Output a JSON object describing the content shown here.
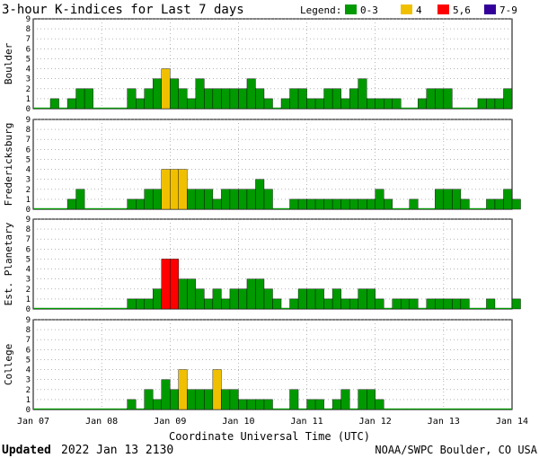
{
  "header": {
    "title": "3-hour K-indices for Last 7 days",
    "legend_label": "Legend:",
    "legend": [
      {
        "label": "0-3",
        "color": "#009900"
      },
      {
        "label": "4",
        "color": "#f0c000"
      },
      {
        "label": "5,6",
        "color": "#ff0000"
      },
      {
        "label": "7-9",
        "color": "#330099"
      }
    ]
  },
  "footer": {
    "updated_label": "Updated",
    "updated_value": "2022 Jan 13 2130",
    "source": "NOAA/SWPC Boulder, CO USA"
  },
  "chart_data": {
    "type": "bar",
    "xlabel": "Coordinate Universal Time (UTC)",
    "x_ticks": [
      "Jan 07",
      "Jan 08",
      "Jan 09",
      "Jan 10",
      "Jan 11",
      "Jan 12",
      "Jan 13",
      "Jan 14"
    ],
    "y_ticks": [
      "0",
      "1",
      "2",
      "3",
      "4",
      "5",
      "6",
      "7",
      "8",
      "9"
    ],
    "ylim": [
      0,
      9
    ],
    "grid": true,
    "panels": [
      {
        "name": "Boulder",
        "values": [
          0,
          0,
          1,
          0,
          1,
          2,
          2,
          0,
          0,
          0,
          0,
          2,
          1,
          2,
          3,
          4,
          3,
          2,
          1,
          3,
          2,
          2,
          2,
          2,
          2,
          3,
          2,
          1,
          0,
          1,
          2,
          2,
          1,
          1,
          2,
          2,
          1,
          2,
          3,
          1,
          1,
          1,
          1,
          0,
          0,
          1,
          2,
          2,
          2,
          0,
          0,
          0,
          1,
          1,
          1,
          2
        ]
      },
      {
        "name": "Fredericksburg",
        "values": [
          0,
          0,
          0,
          0,
          1,
          2,
          0,
          0,
          0,
          0,
          0,
          1,
          1,
          2,
          2,
          4,
          4,
          4,
          2,
          2,
          2,
          1,
          2,
          2,
          2,
          2,
          3,
          2,
          0,
          0,
          1,
          1,
          1,
          1,
          1,
          1,
          1,
          1,
          1,
          1,
          2,
          1,
          0,
          0,
          1,
          0,
          0,
          2,
          2,
          2,
          1,
          0,
          0,
          1,
          1,
          2,
          1
        ]
      },
      {
        "name": "Est. Planetary",
        "values": [
          0,
          0,
          0,
          0,
          0,
          0,
          0,
          0,
          0,
          0,
          0,
          1,
          1,
          1,
          2,
          5,
          5,
          3,
          3,
          2,
          1,
          2,
          1,
          2,
          2,
          3,
          3,
          2,
          1,
          0,
          1,
          2,
          2,
          2,
          1,
          2,
          1,
          1,
          2,
          2,
          1,
          0,
          1,
          1,
          1,
          0,
          1,
          1,
          1,
          1,
          1,
          0,
          0,
          1,
          0,
          0,
          1
        ]
      },
      {
        "name": "College",
        "values": [
          0,
          0,
          0,
          0,
          0,
          0,
          0,
          0,
          0,
          0,
          0,
          1,
          0,
          2,
          1,
          3,
          2,
          4,
          2,
          2,
          2,
          4,
          2,
          2,
          1,
          1,
          1,
          1,
          0,
          0,
          2,
          0,
          1,
          1,
          0,
          1,
          2,
          0,
          2,
          2,
          1,
          0,
          0,
          0,
          0,
          0,
          0,
          0,
          0,
          0,
          0,
          0,
          0,
          0,
          0,
          0
        ]
      }
    ]
  }
}
